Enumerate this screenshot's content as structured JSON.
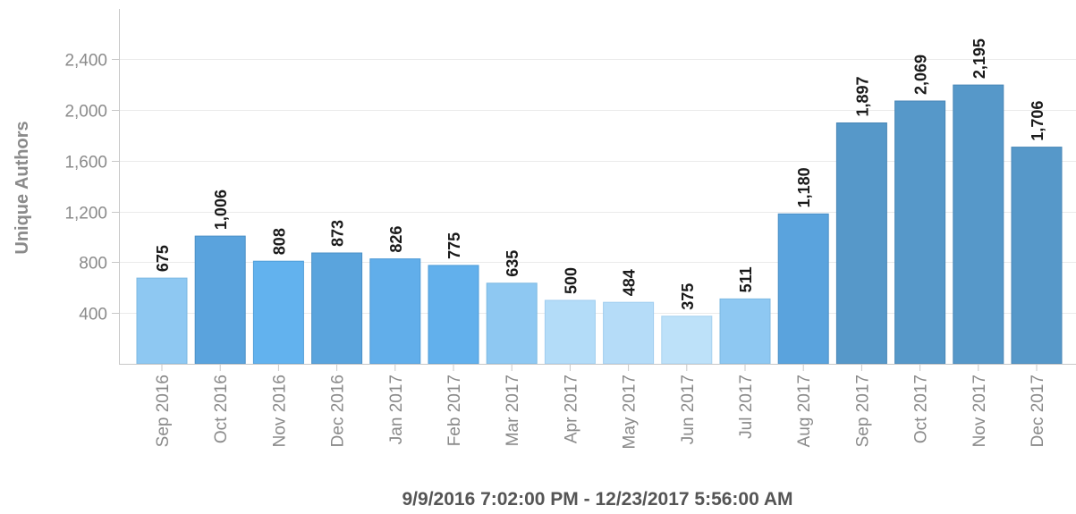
{
  "chart_data": {
    "type": "bar",
    "categories": [
      "Sep 2016",
      "Oct 2016",
      "Nov 2016",
      "Dec 2016",
      "Jan 2017",
      "Feb 2017",
      "Mar 2017",
      "Apr 2017",
      "May 2017",
      "Jun 2017",
      "Jul 2017",
      "Aug 2017",
      "Sep 2017",
      "Oct 2017",
      "Nov 2017",
      "Dec 2017"
    ],
    "values": [
      675,
      1006,
      808,
      873,
      826,
      775,
      635,
      500,
      484,
      375,
      511,
      1180,
      1897,
      2069,
      2195,
      1706
    ],
    "value_labels": [
      "675",
      "1,006",
      "808",
      "873",
      "826",
      "775",
      "635",
      "500",
      "484",
      "375",
      "511",
      "1,180",
      "1,897",
      "2,069",
      "2,195",
      "1,706"
    ],
    "bar_colors": [
      "#8ec8f2",
      "#5aa3dd",
      "#62b2ee",
      "#5aa4dd",
      "#61aeea",
      "#62b0ec",
      "#8ec8f2",
      "#b3dcf8",
      "#b5dcf8",
      "#bde1f9",
      "#8ec8f2",
      "#5aa3dd",
      "#5698c9",
      "#5698c9",
      "#5698c9",
      "#5698c9"
    ],
    "bar_borders": [
      "#7cb8e2",
      "#4a8fc6",
      "#4f9dd8",
      "#4a8fc6",
      "#4f9bd6",
      "#4f9cd8",
      "#7cb8e2",
      "#9fcdef",
      "#a1cdef",
      "#a9d2f0",
      "#7cb8e2",
      "#4a8fc6",
      "#4886b6",
      "#4886b6",
      "#4886b6",
      "#4886b6"
    ],
    "ylabel": "Unique Authors",
    "xlabel": "9/9/2016 7:02:00 PM - 12/23/2017 5:56:00 AM",
    "ylim": [
      0,
      2400
    ],
    "yticks": [
      400,
      800,
      1200,
      1600,
      2000,
      2400
    ],
    "ytick_labels": [
      "400",
      "800",
      "1,200",
      "1,600",
      "2,000",
      "2,400"
    ],
    "grid": true,
    "legend": "none"
  }
}
